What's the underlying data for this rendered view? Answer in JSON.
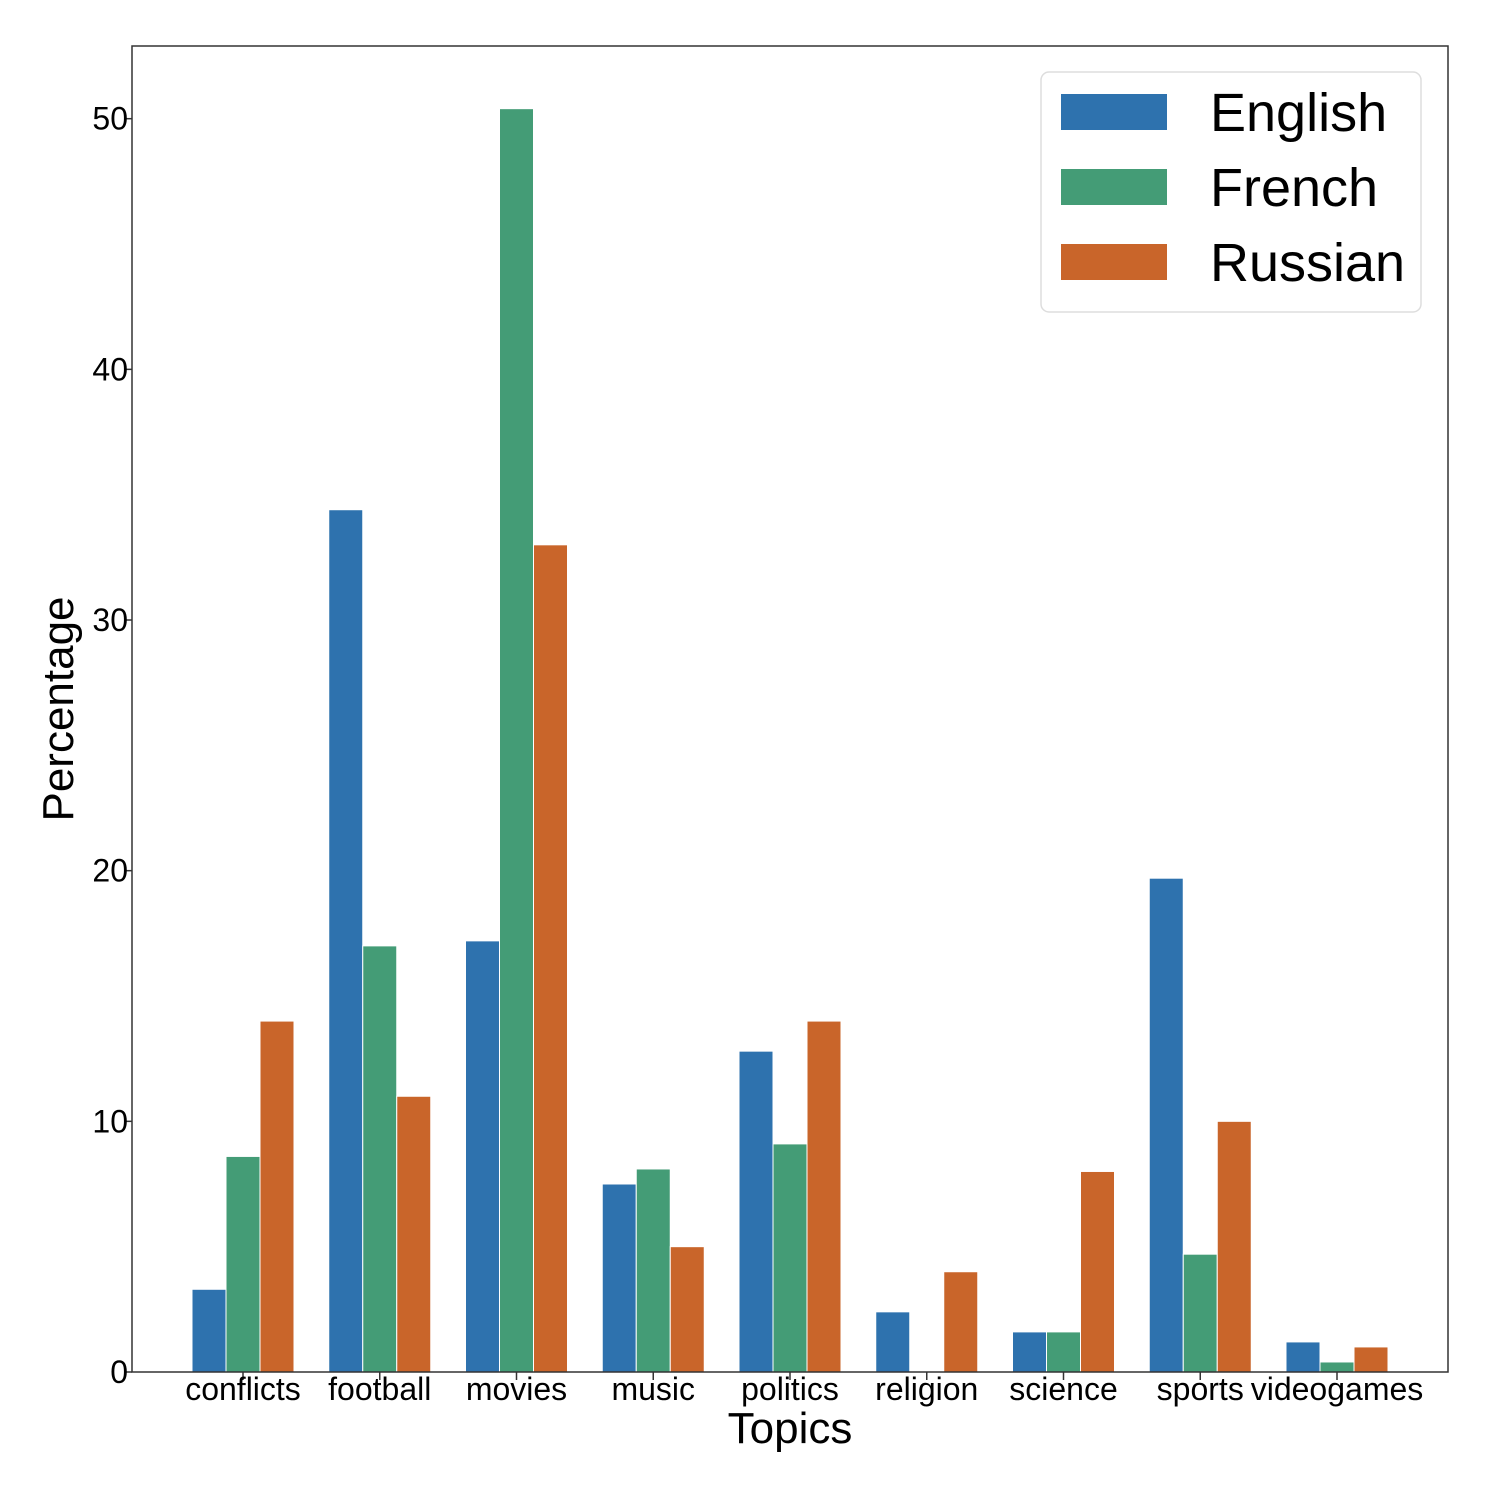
{
  "chart_data": {
    "type": "bar",
    "categories": [
      "conflicts",
      "football",
      "movies",
      "music",
      "politics",
      "religion",
      "science",
      "sports",
      "videogames"
    ],
    "series": [
      {
        "name": "English",
        "color": "#2e72ae",
        "values": [
          3.3,
          34.4,
          17.2,
          7.5,
          12.8,
          2.4,
          1.6,
          19.7,
          1.2
        ]
      },
      {
        "name": "French",
        "color": "#449c76",
        "values": [
          8.6,
          17.0,
          50.4,
          8.1,
          9.1,
          0,
          1.6,
          4.7,
          0.4
        ]
      },
      {
        "name": "Russian",
        "color": "#c9652a",
        "values": [
          14.0,
          11.0,
          33.0,
          5.0,
          14.0,
          4.0,
          8.0,
          10.0,
          1.0
        ]
      }
    ],
    "xlabel": "Topics",
    "ylabel": "Percentage",
    "ylim": [
      0,
      52.9
    ],
    "yticks": [
      0,
      10,
      20,
      30,
      40,
      50
    ],
    "grid": false,
    "legend_position": "top-right"
  }
}
